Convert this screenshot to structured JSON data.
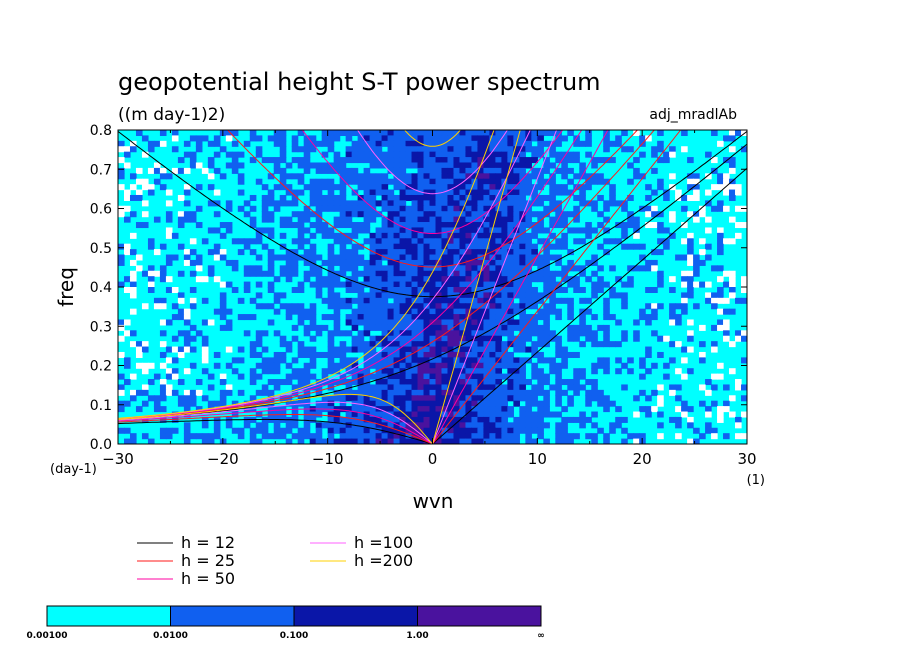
{
  "chart_data": {
    "type": "heatmap",
    "title": "geopotential height S-T power spectrum",
    "units": "((m day-1)2)",
    "dataset_label": "adj_mradlAb",
    "xlabel": "wvn",
    "x_unit": "(1)",
    "ylabel": "freq",
    "y_unit": "(day-1)",
    "xlim": [
      -30,
      30
    ],
    "ylim": [
      0,
      0.8
    ],
    "x_ticks": [
      "−30",
      "−20",
      "−10",
      "0",
      "10",
      "20",
      "30"
    ],
    "y_ticks": [
      "0.0",
      "0.1",
      "0.2",
      "0.3",
      "0.4",
      "0.5",
      "0.6",
      "0.7",
      "0.8"
    ],
    "colorbar": {
      "boundaries": [
        "0.00100",
        "0.0100",
        "0.100",
        "1.00",
        "∞"
      ],
      "colors": [
        "#00ffff",
        "#1060f0",
        "#0a16a8",
        "#4a129e"
      ],
      "background_below": "#ffffff"
    },
    "dispersion_legend": [
      {
        "label": "h = 12",
        "color": "#000000"
      },
      {
        "label": "h = 25",
        "color": "#ff1a1a"
      },
      {
        "label": "h = 50",
        "color": "#ff00a0"
      },
      {
        "label": "h =100",
        "color": "#ff60ff"
      },
      {
        "label": "h =200",
        "color": "#ffd000"
      }
    ],
    "equivalent_depths_m": [
      12,
      25,
      50,
      100,
      200
    ]
  }
}
